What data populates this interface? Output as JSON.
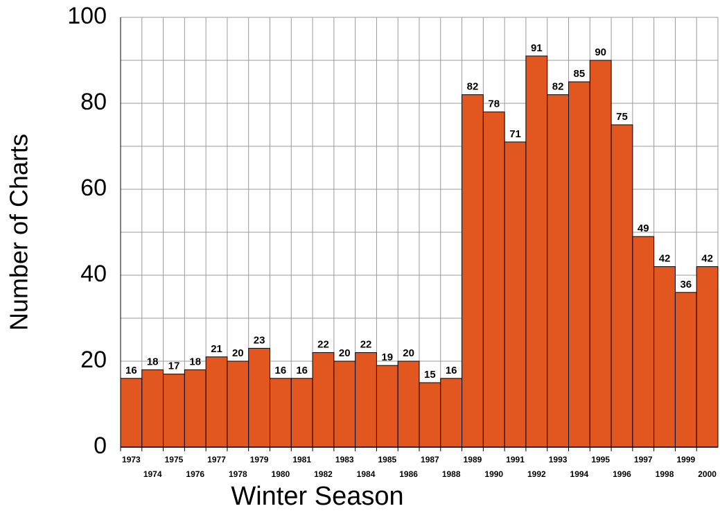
{
  "chart_data": {
    "type": "bar",
    "x_label": "Winter Season",
    "y_label": "Number of Charts",
    "categories": [
      "1973",
      "1974",
      "1975",
      "1976",
      "1977",
      "1978",
      "1979",
      "1980",
      "1981",
      "1982",
      "1983",
      "1984",
      "1985",
      "1986",
      "1987",
      "1988",
      "1989",
      "1990",
      "1991",
      "1992",
      "1993",
      "1994",
      "1995",
      "1996",
      "1997",
      "1998",
      "1999",
      "2000"
    ],
    "values": [
      16,
      18,
      17,
      18,
      21,
      20,
      23,
      16,
      16,
      22,
      20,
      22,
      19,
      20,
      15,
      16,
      82,
      78,
      71,
      91,
      82,
      85,
      90,
      75,
      49,
      42,
      36,
      42
    ],
    "color": "#e25620",
    "ylim": [
      0,
      100
    ],
    "yticks": [
      0,
      20,
      40,
      60,
      80,
      100
    ],
    "minor_yticks": [
      10,
      30,
      50,
      70,
      90
    ],
    "grid": true
  }
}
